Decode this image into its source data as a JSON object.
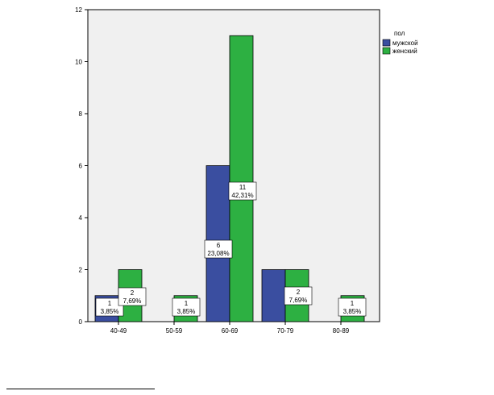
{
  "chart_data": {
    "type": "bar",
    "title": "",
    "xlabel": "",
    "ylabel": "",
    "categories": [
      "40-49",
      "50-59",
      "60-69",
      "70-79",
      "80-89"
    ],
    "series": [
      {
        "name": "мужской",
        "color": "#3a4ea0",
        "values": [
          1,
          0,
          6,
          2,
          0
        ],
        "labels": [
          [
            "1",
            "3,85%"
          ],
          null,
          [
            "6",
            "23,08%"
          ],
          null,
          null
        ]
      },
      {
        "name": "женский",
        "color": "#2db042",
        "values": [
          2,
          1,
          11,
          2,
          1
        ],
        "labels": [
          [
            "2",
            "7,69%"
          ],
          [
            "1",
            "3,85%"
          ],
          [
            "11",
            "42,31%"
          ],
          [
            "2",
            "7,69%"
          ],
          [
            "1",
            "3,85%"
          ]
        ]
      }
    ],
    "ylim": [
      0,
      12
    ],
    "yticks": [
      0,
      2,
      4,
      6,
      8,
      10,
      12
    ],
    "legend": {
      "title": "пол",
      "position": "top-right"
    },
    "grid": false,
    "plot_background": "#f0f0f0"
  }
}
